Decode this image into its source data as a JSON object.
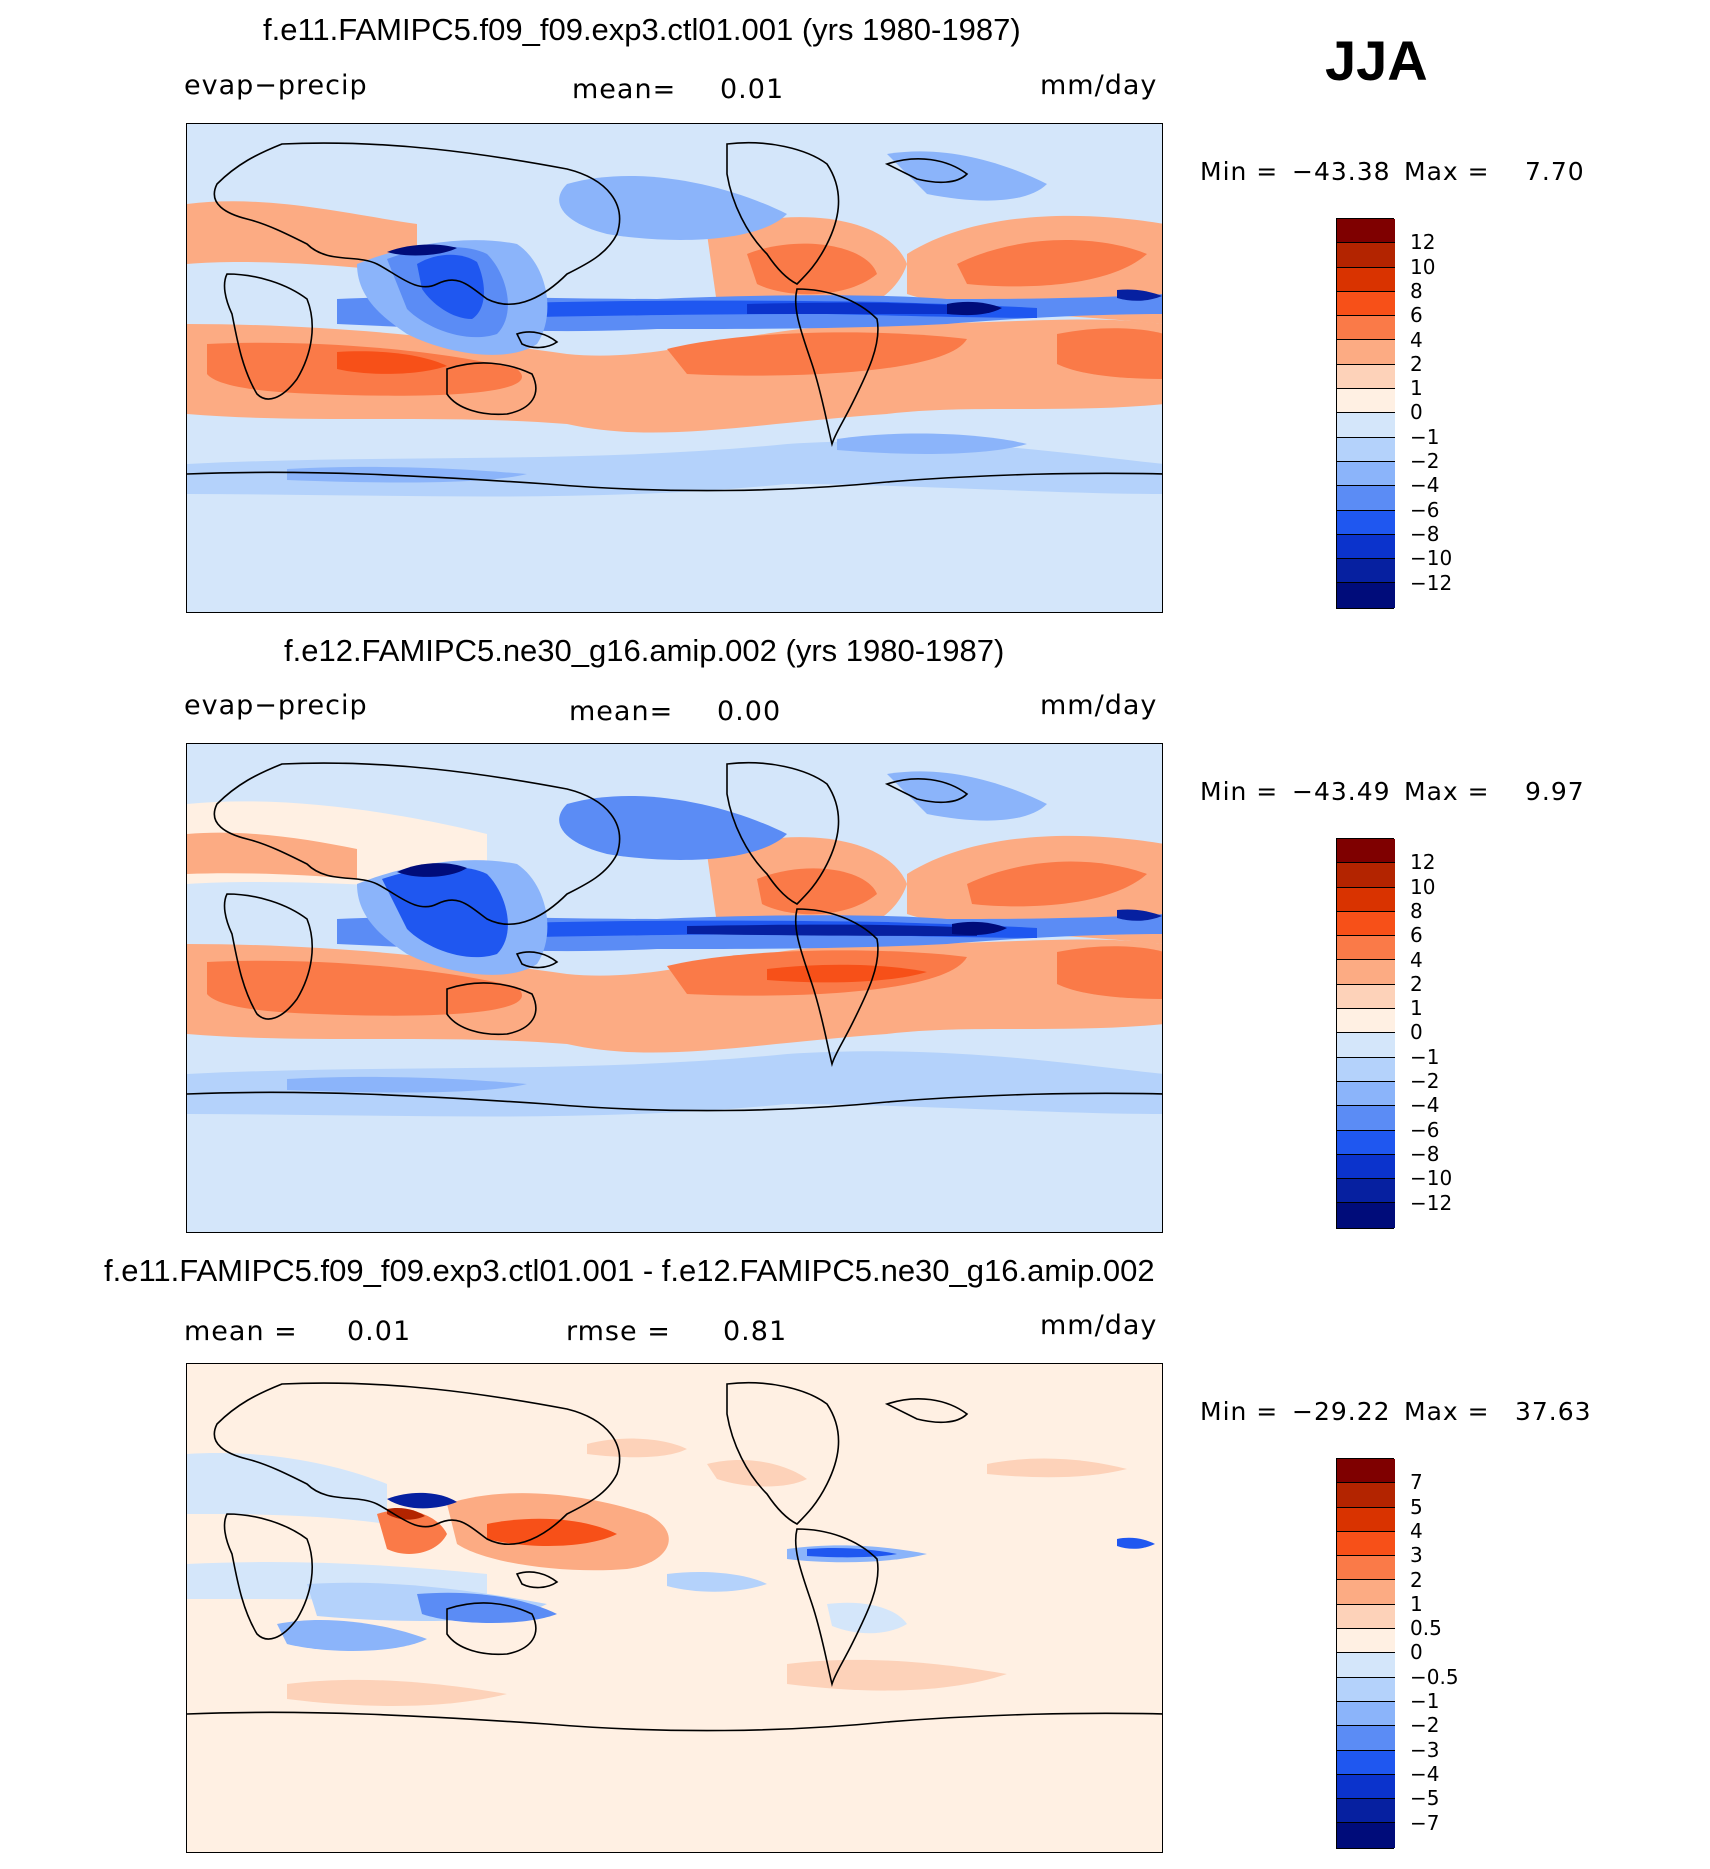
{
  "season": "JJA",
  "panels": [
    {
      "title": "f.e11.FAMIPC5.f09_f09.exp3.ctl01.001 (yrs 1980-1987)",
      "left_label": "evap−precip",
      "mean_label": "mean=",
      "mean_value": "0.01",
      "units": "mm/day",
      "min_label": "Min  =",
      "min_value": "−43.38",
      "max_label": "Max  =",
      "max_value": "7.70",
      "colorbar": {
        "labels": [
          "12",
          "10",
          "8",
          "6",
          "4",
          "2",
          "1",
          "0",
          "−1",
          "−2",
          "−4",
          "−6",
          "−8",
          "−10",
          "−12"
        ],
        "colors": [
          "#7f0000",
          "#b32400",
          "#d93300",
          "#f75018",
          "#fa7a48",
          "#fcab83",
          "#fdd2b9",
          "#fff0e3",
          "#d4e6fa",
          "#b4d2fb",
          "#8bb4fa",
          "#5b8cf5",
          "#1f57f0",
          "#0b33cc",
          "#0620a0",
          "#000c7a"
        ]
      }
    },
    {
      "title": "f.e12.FAMIPC5.ne30_g16.amip.002 (yrs 1980-1987)",
      "left_label": "evap−precip",
      "mean_label": "mean=",
      "mean_value": "0.00",
      "units": "mm/day",
      "min_label": "Min  =",
      "min_value": "−43.49",
      "max_label": "Max  =",
      "max_value": "9.97",
      "colorbar": {
        "labels": [
          "12",
          "10",
          "8",
          "6",
          "4",
          "2",
          "1",
          "0",
          "−1",
          "−2",
          "−4",
          "−6",
          "−8",
          "−10",
          "−12"
        ],
        "colors": [
          "#7f0000",
          "#b32400",
          "#d93300",
          "#f75018",
          "#fa7a48",
          "#fcab83",
          "#fdd2b9",
          "#fff0e3",
          "#d4e6fa",
          "#b4d2fb",
          "#8bb4fa",
          "#5b8cf5",
          "#1f57f0",
          "#0b33cc",
          "#0620a0",
          "#000c7a"
        ]
      }
    },
    {
      "title": "f.e11.FAMIPC5.f09_f09.exp3.ctl01.001 - f.e12.FAMIPC5.ne30_g16.amip.002",
      "left_label": "mean  =",
      "left_value": "0.01",
      "rmse_label": "rmse  =",
      "rmse_value": "0.81",
      "units": "mm/day",
      "min_label": "Min  =",
      "min_value": "−29.22",
      "max_label": "Max  =",
      "max_value": "37.63",
      "colorbar": {
        "labels": [
          "7",
          "5",
          "4",
          "3",
          "2",
          "1",
          "0.5",
          "0",
          "−0.5",
          "−1",
          "−2",
          "−3",
          "−4",
          "−5",
          "−7"
        ],
        "colors": [
          "#7f0000",
          "#b32400",
          "#d93300",
          "#f75018",
          "#fa7a48",
          "#fcab83",
          "#fdd2b9",
          "#fff0e3",
          "#d4e6fa",
          "#b4d2fb",
          "#8bb4fa",
          "#5b8cf5",
          "#1f57f0",
          "#0b33cc",
          "#0620a0",
          "#000c7a"
        ]
      }
    }
  ]
}
